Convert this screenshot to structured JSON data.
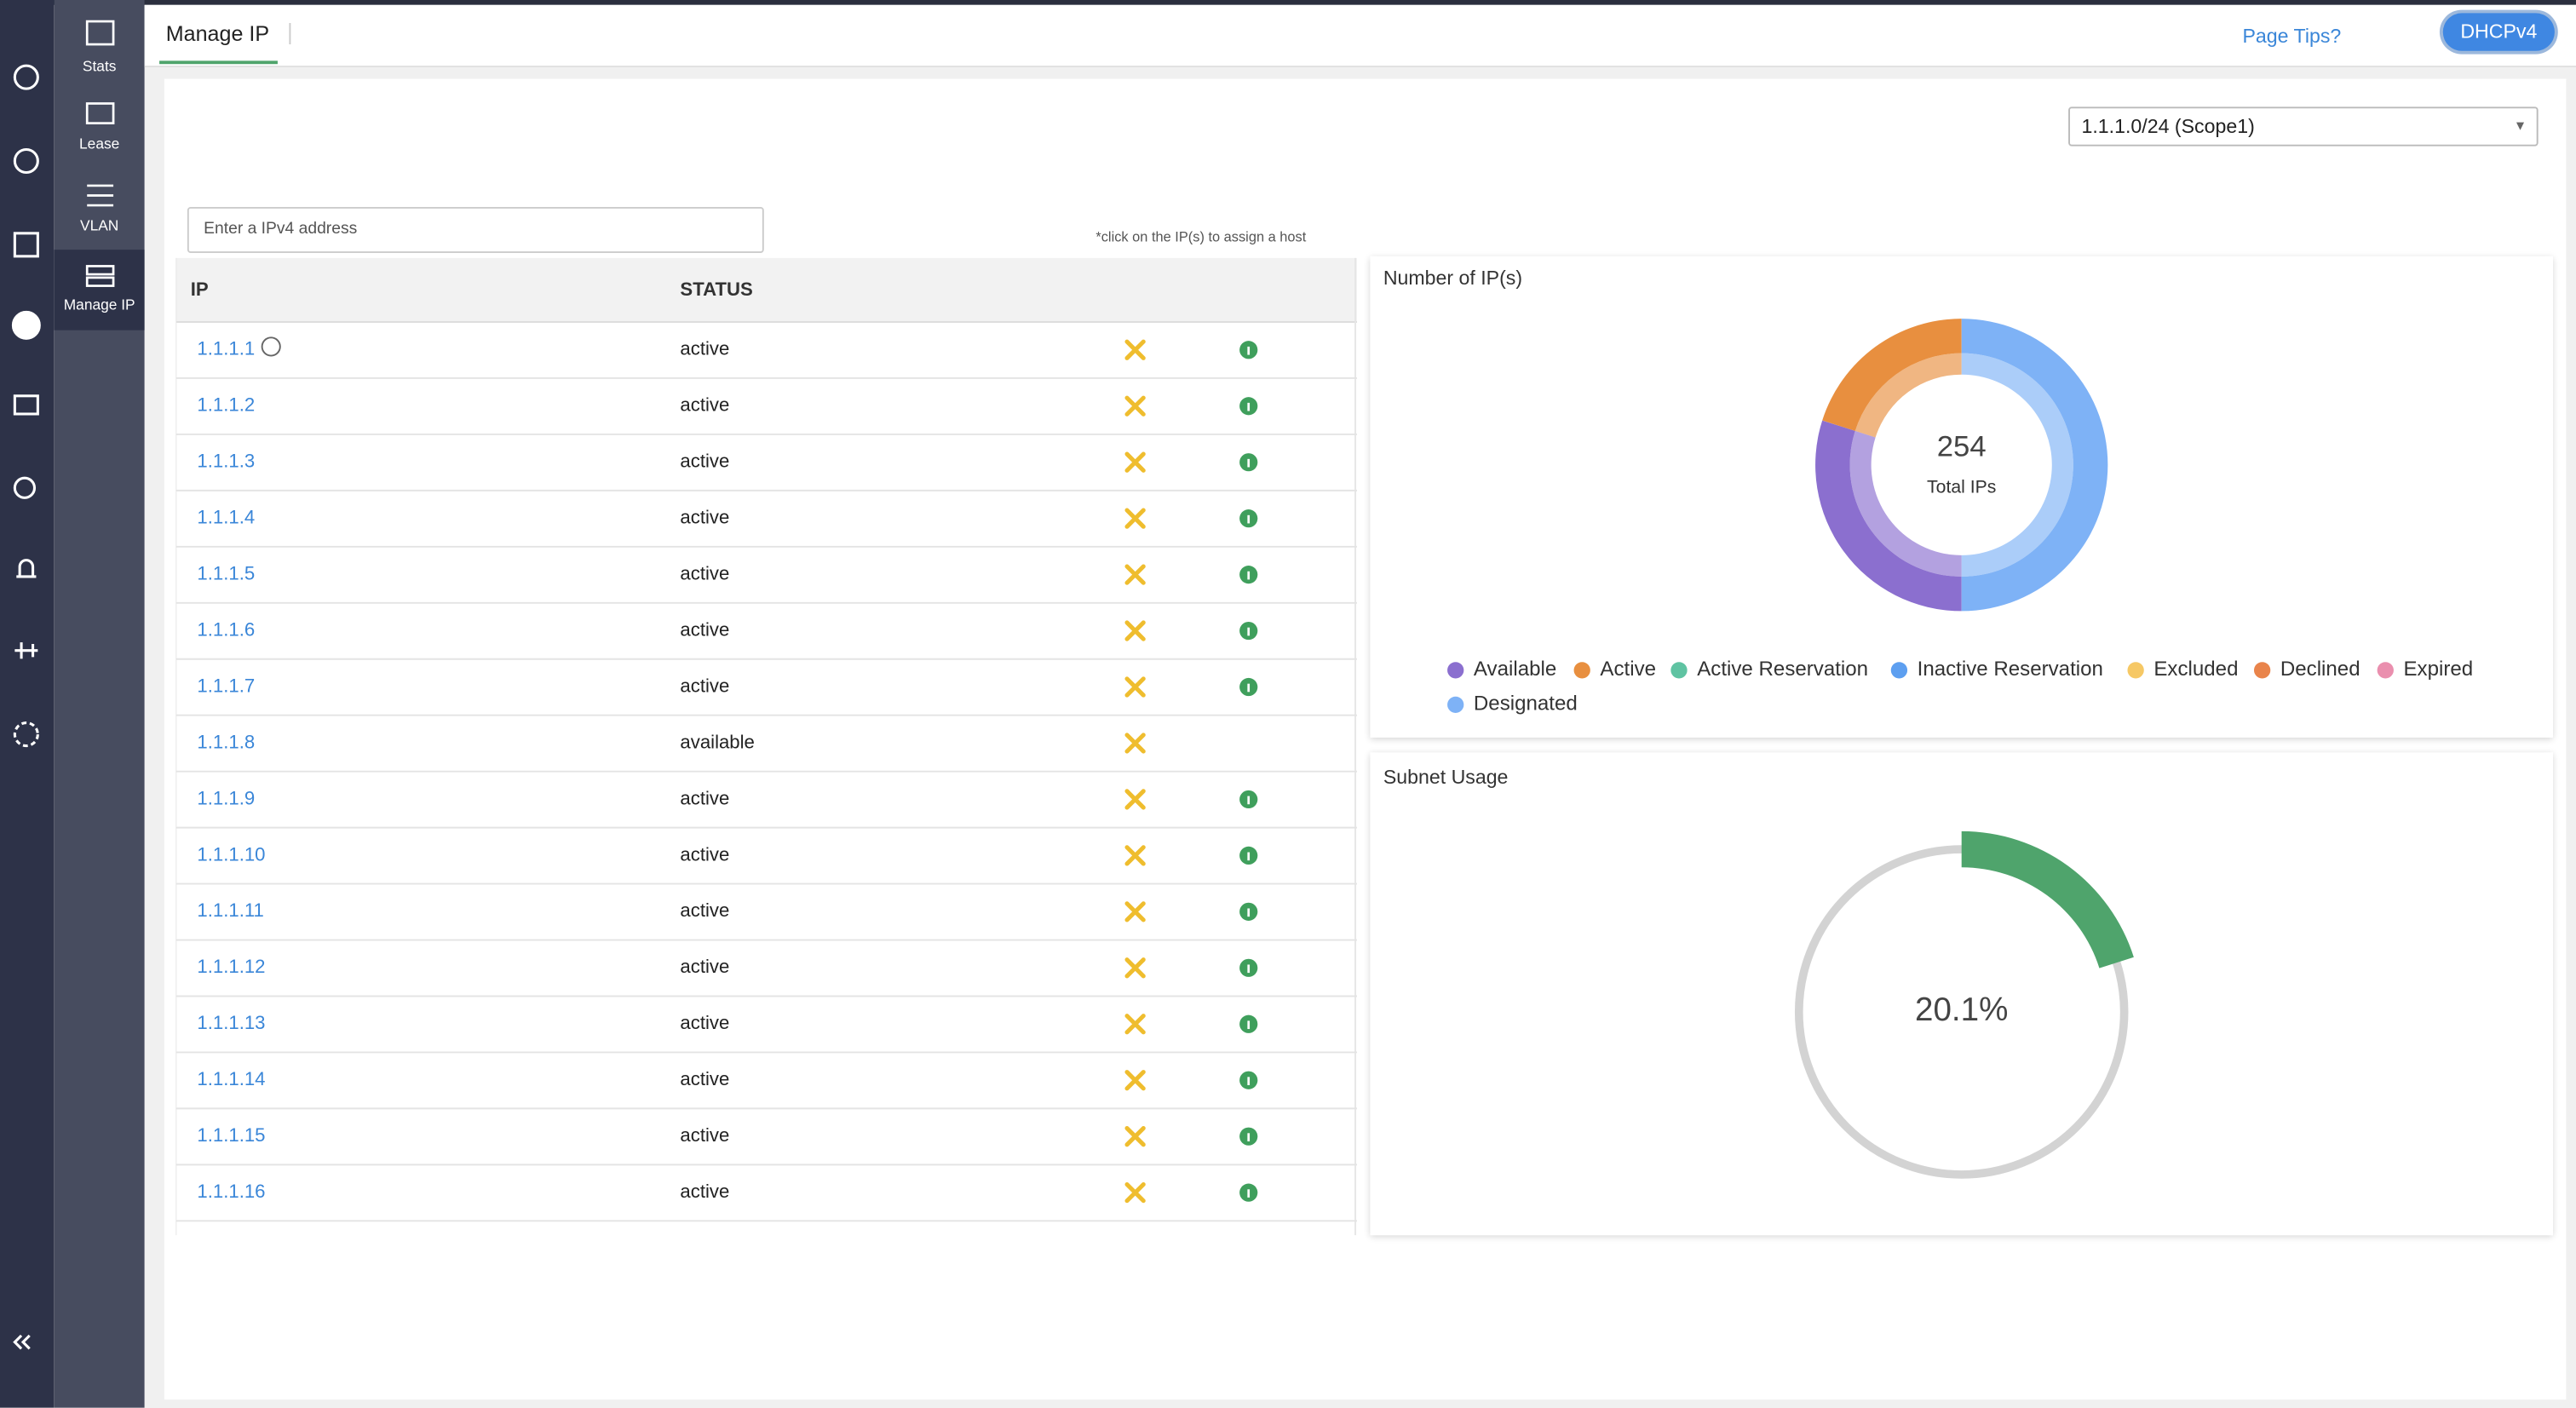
{
  "submenu": [
    "Stats",
    "Lease",
    "VLAN",
    "Manage IP"
  ],
  "header": {
    "title": "Manage IP",
    "tips": "Page Tips?",
    "button": "DHCPv4"
  },
  "scope_select": "1.1.1.0/24 (Scope1)",
  "search_placeholder": "Enter a IPv4 address",
  "hint": "*click on the IP(s) to assign a host",
  "table": {
    "columns": [
      "IP",
      "STATUS"
    ],
    "rows": [
      [
        "1.1.1.1",
        "active"
      ],
      [
        "1.1.1.2",
        "active"
      ],
      [
        "1.1.1.3",
        "active"
      ],
      [
        "1.1.1.4",
        "active"
      ],
      [
        "1.1.1.5",
        "active"
      ],
      [
        "1.1.1.6",
        "active"
      ],
      [
        "1.1.1.7",
        "active"
      ],
      [
        "1.1.1.8",
        "available"
      ],
      [
        "1.1.1.9",
        "active"
      ],
      [
        "1.1.1.10",
        "active"
      ],
      [
        "1.1.1.11",
        "active"
      ],
      [
        "1.1.1.12",
        "active"
      ],
      [
        "1.1.1.13",
        "active"
      ],
      [
        "1.1.1.14",
        "active"
      ],
      [
        "1.1.1.15",
        "active"
      ],
      [
        "1.1.1.16",
        "active"
      ]
    ]
  },
  "chart_data": [
    {
      "type": "donut",
      "title": "Number of IP(s)",
      "total": 254,
      "total_label": "Total IPs",
      "series": [
        {
          "name": "Available",
          "color": "#8b6fcf",
          "values": [
            76
          ]
        },
        {
          "name": "Active",
          "color": "#e88f3f",
          "values": [
            51
          ]
        },
        {
          "name": "Active Reservation",
          "color": "#5fc3a2",
          "values": [
            0
          ]
        },
        {
          "name": "Inactive Reservation",
          "color": "#5d9ff0",
          "values": [
            0
          ]
        },
        {
          "name": "Excluded",
          "color": "#f6c865",
          "values": [
            0
          ]
        },
        {
          "name": "Declined",
          "color": "#e9844b",
          "values": [
            0
          ]
        },
        {
          "name": "Expired",
          "color": "#ea8fae",
          "values": [
            0
          ]
        },
        {
          "name": "Designated",
          "color": "#7eb2f6",
          "values": [
            127
          ]
        }
      ]
    },
    {
      "type": "gauge",
      "title": "Subnet Usage",
      "values": [
        20.1
      ],
      "value_labels": [
        "20.1%"
      ],
      "ylim": [
        0,
        100
      ],
      "color": "#4fa46c"
    }
  ]
}
